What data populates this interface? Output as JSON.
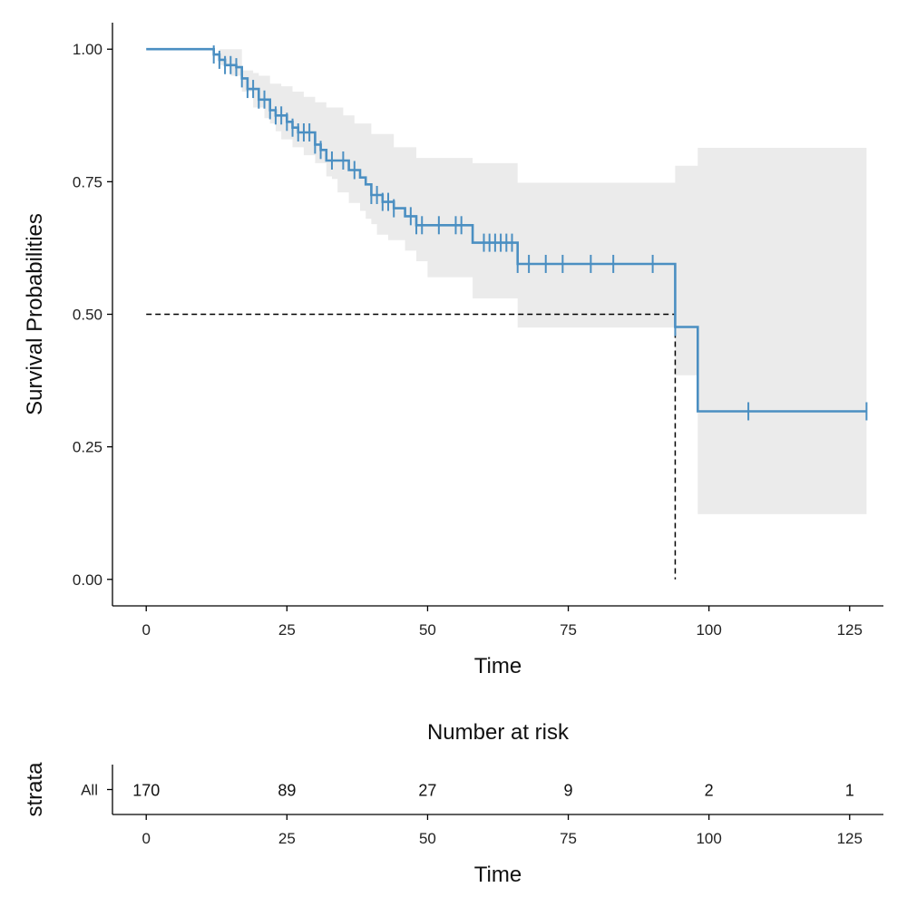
{
  "chart_data": {
    "type": "survival-curve",
    "title": "",
    "xlabel": "Time",
    "ylabel": "Survival Probabilities",
    "xlim": [
      -6,
      131
    ],
    "ylim": [
      -0.05,
      1.05
    ],
    "x_ticks": [
      0,
      25,
      50,
      75,
      100,
      125
    ],
    "y_ticks": [
      0,
      0.25,
      0.5,
      0.75,
      1.0
    ],
    "y_tick_labels": [
      "0.00",
      "0.25",
      "0.50",
      "0.75",
      "1.00"
    ],
    "line_color": "#4b8fc2",
    "ci_color": "#ebebeb",
    "median_survival": 94,
    "series": [
      {
        "name": "All",
        "steps": [
          [
            0,
            1.0
          ],
          [
            12,
            0.99
          ],
          [
            13,
            0.98
          ],
          [
            14,
            0.97
          ],
          [
            16,
            0.966
          ],
          [
            17,
            0.945
          ],
          [
            18,
            0.925
          ],
          [
            20,
            0.905
          ],
          [
            22,
            0.885
          ],
          [
            23,
            0.875
          ],
          [
            25,
            0.863
          ],
          [
            26,
            0.852
          ],
          [
            27,
            0.843
          ],
          [
            30,
            0.82
          ],
          [
            31,
            0.81
          ],
          [
            32,
            0.79
          ],
          [
            36,
            0.772
          ],
          [
            38,
            0.758
          ],
          [
            39,
            0.745
          ],
          [
            40,
            0.725
          ],
          [
            42,
            0.712
          ],
          [
            44,
            0.7
          ],
          [
            46,
            0.685
          ],
          [
            48,
            0.668
          ],
          [
            58,
            0.635
          ],
          [
            66,
            0.595
          ],
          [
            94,
            0.476
          ],
          [
            98,
            0.317
          ],
          [
            128,
            0.317
          ]
        ],
        "ci_lower": [
          [
            0,
            1.0
          ],
          [
            13,
            0.97
          ],
          [
            15,
            0.95
          ],
          [
            17,
            0.92
          ],
          [
            19,
            0.89
          ],
          [
            21,
            0.87
          ],
          [
            22,
            0.86
          ],
          [
            23,
            0.845
          ],
          [
            24,
            0.83
          ],
          [
            26,
            0.815
          ],
          [
            28,
            0.8
          ],
          [
            30,
            0.785
          ],
          [
            32,
            0.76
          ],
          [
            33,
            0.755
          ],
          [
            34,
            0.73
          ],
          [
            36,
            0.71
          ],
          [
            38,
            0.695
          ],
          [
            39,
            0.68
          ],
          [
            40,
            0.67
          ],
          [
            41,
            0.65
          ],
          [
            43,
            0.64
          ],
          [
            46,
            0.62
          ],
          [
            48,
            0.6
          ],
          [
            50,
            0.57
          ],
          [
            58,
            0.53
          ],
          [
            66,
            0.475
          ],
          [
            94,
            0.385
          ],
          [
            98,
            0.123
          ],
          [
            128,
            0.123
          ]
        ],
        "ci_upper": [
          [
            0,
            1.0
          ],
          [
            15,
            1.0
          ],
          [
            17,
            0.96
          ],
          [
            19,
            0.955
          ],
          [
            20,
            0.95
          ],
          [
            22,
            0.935
          ],
          [
            24,
            0.93
          ],
          [
            26,
            0.92
          ],
          [
            28,
            0.91
          ],
          [
            30,
            0.9
          ],
          [
            32,
            0.89
          ],
          [
            35,
            0.875
          ],
          [
            37,
            0.86
          ],
          [
            40,
            0.84
          ],
          [
            44,
            0.815
          ],
          [
            48,
            0.795
          ],
          [
            58,
            0.785
          ],
          [
            66,
            0.748
          ],
          [
            94,
            0.78
          ],
          [
            98,
            0.814
          ],
          [
            128,
            0.814
          ]
        ],
        "censor_times": [
          12,
          13,
          14,
          15,
          16,
          17,
          18,
          19,
          20,
          21,
          22,
          23,
          24,
          25,
          26,
          27,
          28,
          29,
          30,
          31,
          33,
          35,
          37,
          40,
          41,
          42,
          43,
          44,
          47,
          48,
          49,
          52,
          55,
          56,
          60,
          61,
          62,
          63,
          64,
          65,
          66,
          68,
          71,
          74,
          79,
          83,
          90,
          94,
          107,
          128
        ]
      }
    ],
    "risk_table": {
      "title": "Number at risk",
      "ylabel": "strata",
      "xlabel": "Time",
      "strata_label": "All",
      "times": [
        0,
        25,
        50,
        75,
        100,
        125
      ],
      "counts": [
        "170",
        "89",
        "27",
        "9",
        "2",
        "1"
      ]
    }
  }
}
